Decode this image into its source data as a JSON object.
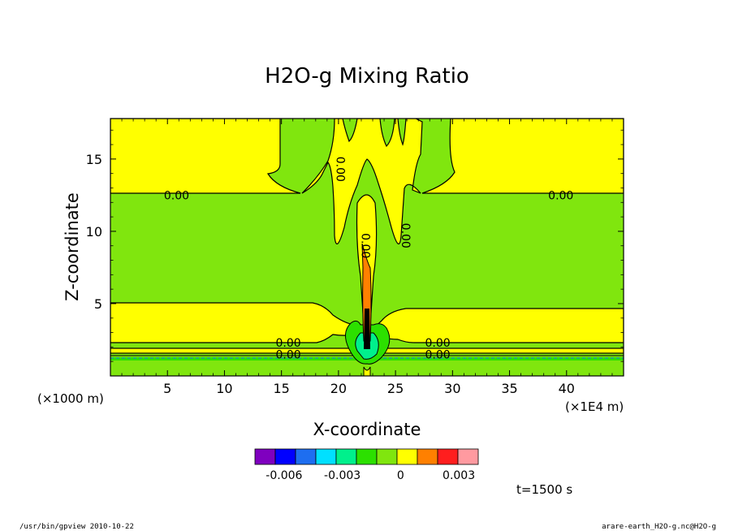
{
  "chart_data": {
    "type": "contour",
    "title": "H2O-g Mixing Ratio",
    "xlabel": "X-coordinate",
    "ylabel": "Z-coordinate",
    "x_unit_left": "(×1000 m)",
    "x_unit_right": "(×1E4 m)",
    "xlim": [
      0,
      45
    ],
    "ylim": [
      0,
      17.8
    ],
    "x_ticks": [
      5,
      10,
      15,
      20,
      25,
      30,
      35,
      40
    ],
    "y_ticks": [
      5,
      10,
      15
    ],
    "contour_labels": [
      {
        "text": "0.00",
        "x": 5.8,
        "z": 12.5,
        "rot": 0
      },
      {
        "text": "0.00",
        "x": 39.5,
        "z": 12.5,
        "rot": 0
      },
      {
        "text": "0.00",
        "x": 15.6,
        "z": 2.3,
        "rot": 0
      },
      {
        "text": "0.00",
        "x": 15.6,
        "z": 1.5,
        "rot": 0
      },
      {
        "text": "0.00",
        "x": 28.7,
        "z": 2.3,
        "rot": 0
      },
      {
        "text": "0.00",
        "x": 28.7,
        "z": 1.5,
        "rot": 0
      },
      {
        "text": "0.00",
        "x": 20.2,
        "z": 14.3,
        "rot": 90
      },
      {
        "text": "0.00",
        "x": 25.9,
        "z": 9.7,
        "rot": 90
      },
      {
        "text": "0.00",
        "x": 22.4,
        "z": 9.0,
        "rot": 90
      }
    ],
    "colorbar": {
      "colors": [
        "#7f00bf",
        "#0000ff",
        "#1e6ef0",
        "#00e0ff",
        "#00f08c",
        "#2ce000",
        "#80e60e",
        "#ffff00",
        "#ff8000",
        "#ff1e1e",
        "#ff9aa0"
      ],
      "ticks": [
        {
          "label": "-0.006",
          "value": -0.006
        },
        {
          "label": "-0.003",
          "value": -0.003
        },
        {
          "label": "0",
          "value": 0
        },
        {
          "label": "0.003",
          "value": 0.003
        }
      ],
      "range": [
        -0.0075,
        0.004
      ]
    }
  },
  "annotations": {
    "time": "t=1500 s",
    "footer_left": "/usr/bin/gpview  2010-10-22",
    "footer_right": "arare-earth_H2O-g.nc@H2O-g"
  }
}
